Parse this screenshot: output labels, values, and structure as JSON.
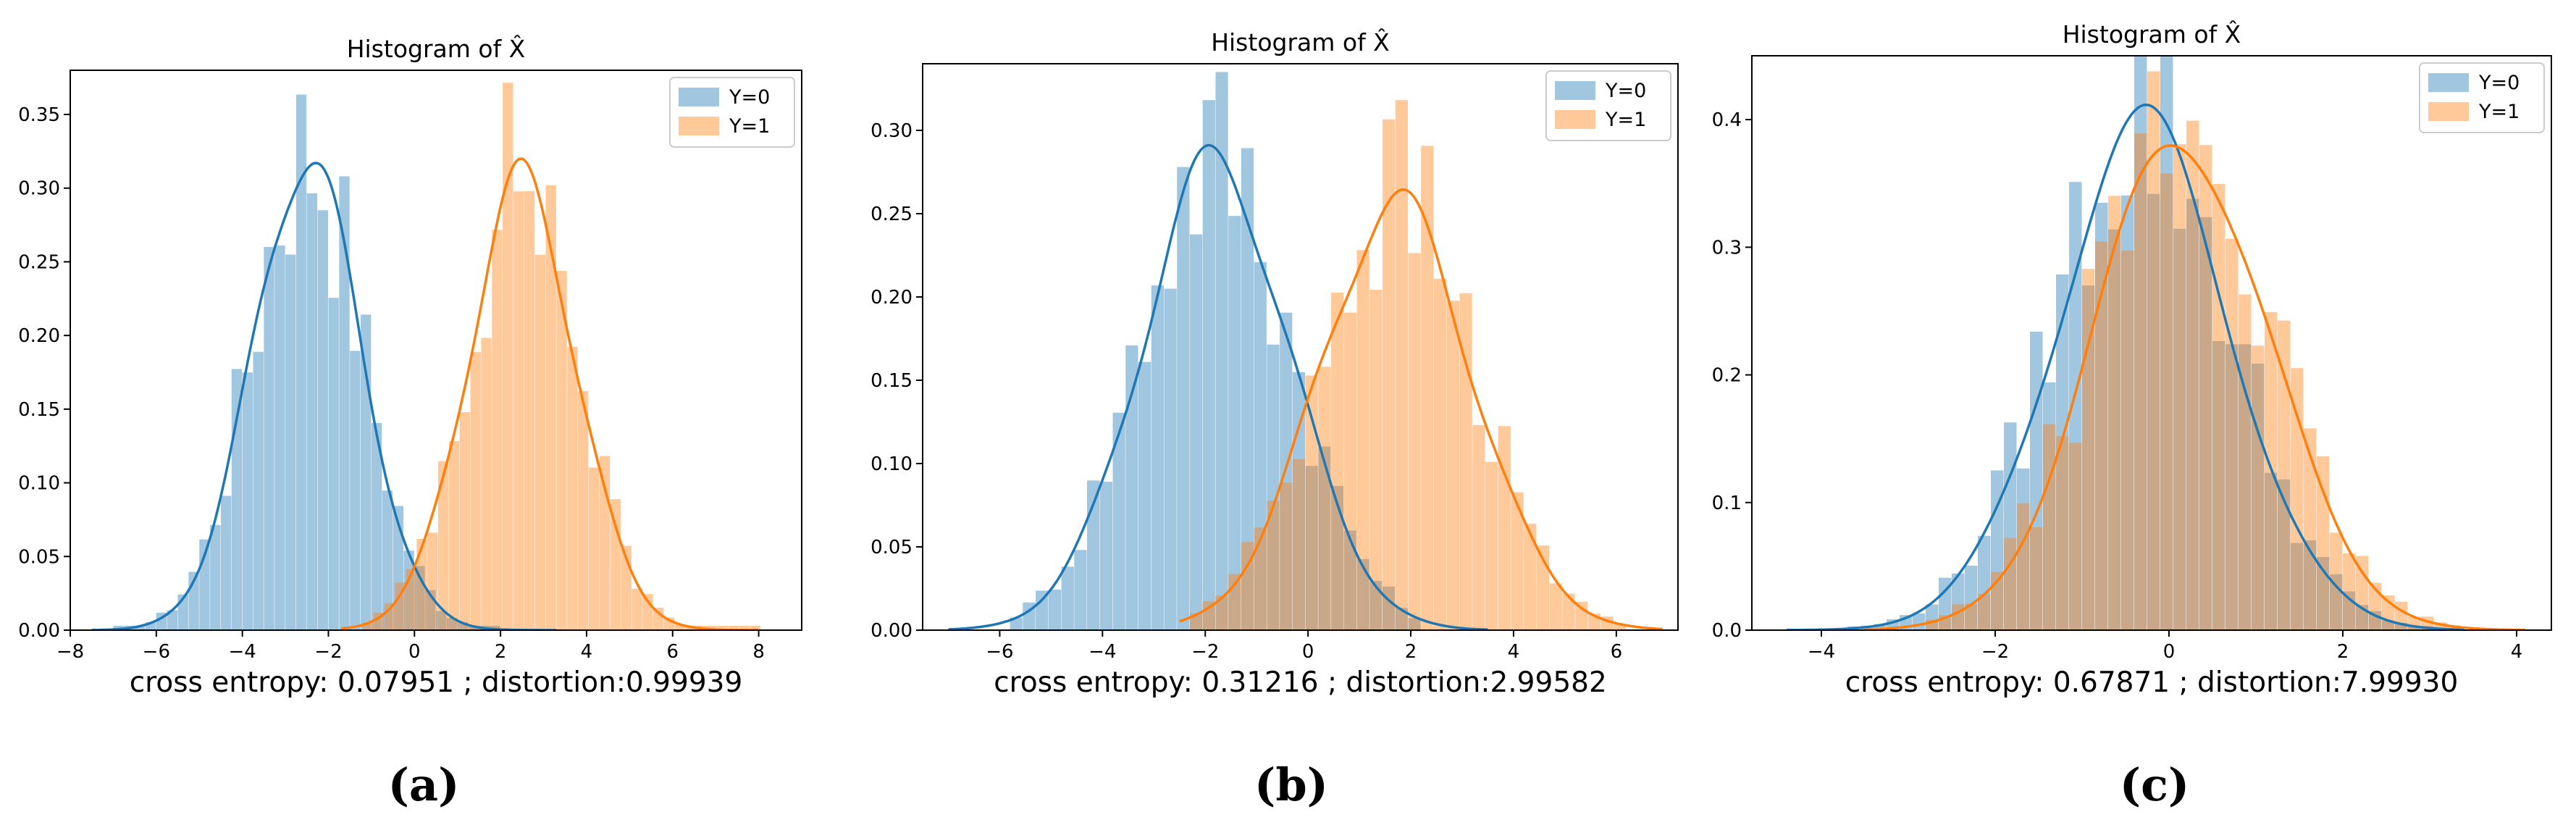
{
  "colors": {
    "y0": "#1f77b4",
    "y1": "#ff7f0e"
  },
  "chart_data": [
    {
      "type": "histogram",
      "panel": "(a)",
      "title": "Histogram of X̂",
      "xlabel": "cross entropy: 0.07951 ; distortion:0.99939",
      "legend": [
        "Y=0",
        "Y=1"
      ],
      "legend_position": "top-right",
      "xlim": [
        -8,
        9
      ],
      "ylim": [
        0,
        0.38
      ],
      "xticks": [
        -8,
        -6,
        -4,
        -2,
        0,
        2,
        4,
        6,
        8
      ],
      "yticks": [
        0.0,
        0.05,
        0.1,
        0.15,
        0.2,
        0.25,
        0.3,
        0.35
      ],
      "ytick_labels": [
        "0.00",
        "0.05",
        "0.10",
        "0.15",
        "0.20",
        "0.25",
        "0.30",
        "0.35"
      ],
      "series": [
        {
          "name": "Y=0",
          "mean": -2.5,
          "sd": 1.25,
          "peak": 0.32,
          "kde_range": [
            -7.5,
            3.3
          ],
          "bin_width": 0.25,
          "bins": [
            -7,
            2
          ]
        },
        {
          "name": "Y=1",
          "mean": 2.5,
          "sd": 1.25,
          "peak": 0.305,
          "kde_range": [
            -1.7,
            8.0
          ],
          "bin_width": 0.25,
          "bins": [
            -1.2,
            8
          ]
        }
      ]
    },
    {
      "type": "histogram",
      "panel": "(b)",
      "title": "Histogram of X̂",
      "xlabel": "cross entropy: 0.31216 ; distortion:2.99582",
      "legend": [
        "Y=0",
        "Y=1"
      ],
      "legend_position": "top-right",
      "xlim": [
        -7.5,
        7.2
      ],
      "ylim": [
        0,
        0.34
      ],
      "xticks": [
        -6,
        -4,
        -2,
        0,
        2,
        4,
        6
      ],
      "yticks": [
        0.0,
        0.05,
        0.1,
        0.15,
        0.2,
        0.25,
        0.3
      ],
      "ytick_labels": [
        "0.00",
        "0.05",
        "0.10",
        "0.15",
        "0.20",
        "0.25",
        "0.30"
      ],
      "series": [
        {
          "name": "Y=0",
          "mean": -1.8,
          "sd": 1.45,
          "peak": 0.28,
          "kde_range": [
            -7.0,
            3.5
          ],
          "bin_width": 0.25,
          "bins": [
            -5.8,
            2.2
          ]
        },
        {
          "name": "Y=1",
          "mean": 1.7,
          "sd": 1.5,
          "peak": 0.255,
          "kde_range": [
            -2.5,
            6.9
          ],
          "bin_width": 0.25,
          "bins": [
            -2.3,
            6.2
          ]
        }
      ]
    },
    {
      "type": "histogram",
      "panel": "(c)",
      "title": "Histogram of X̂",
      "xlabel": "cross entropy: 0.67871 ; distortion:7.99930",
      "legend": [
        "Y=0",
        "Y=1"
      ],
      "legend_position": "top-right",
      "xlim": [
        -4.8,
        4.4
      ],
      "ylim": [
        0,
        0.45
      ],
      "xticks": [
        -4,
        -2,
        0,
        2,
        4
      ],
      "yticks": [
        0.0,
        0.1,
        0.2,
        0.3,
        0.4
      ],
      "ytick_labels": [
        "0.0",
        "0.1",
        "0.2",
        "0.3",
        "0.4"
      ],
      "series": [
        {
          "name": "Y=0",
          "mean": -0.3,
          "sd": 1.0,
          "peak": 0.393,
          "kde_range": [
            -4.4,
            3.4
          ],
          "bin_width": 0.15,
          "bins": [
            -3.7,
            2.9
          ]
        },
        {
          "name": "Y=1",
          "mean": 0.15,
          "sd": 1.0,
          "peak": 0.387,
          "kde_range": [
            -3.5,
            4.1
          ],
          "bin_width": 0.15,
          "bins": [
            -2.8,
            3.2
          ]
        }
      ]
    }
  ]
}
